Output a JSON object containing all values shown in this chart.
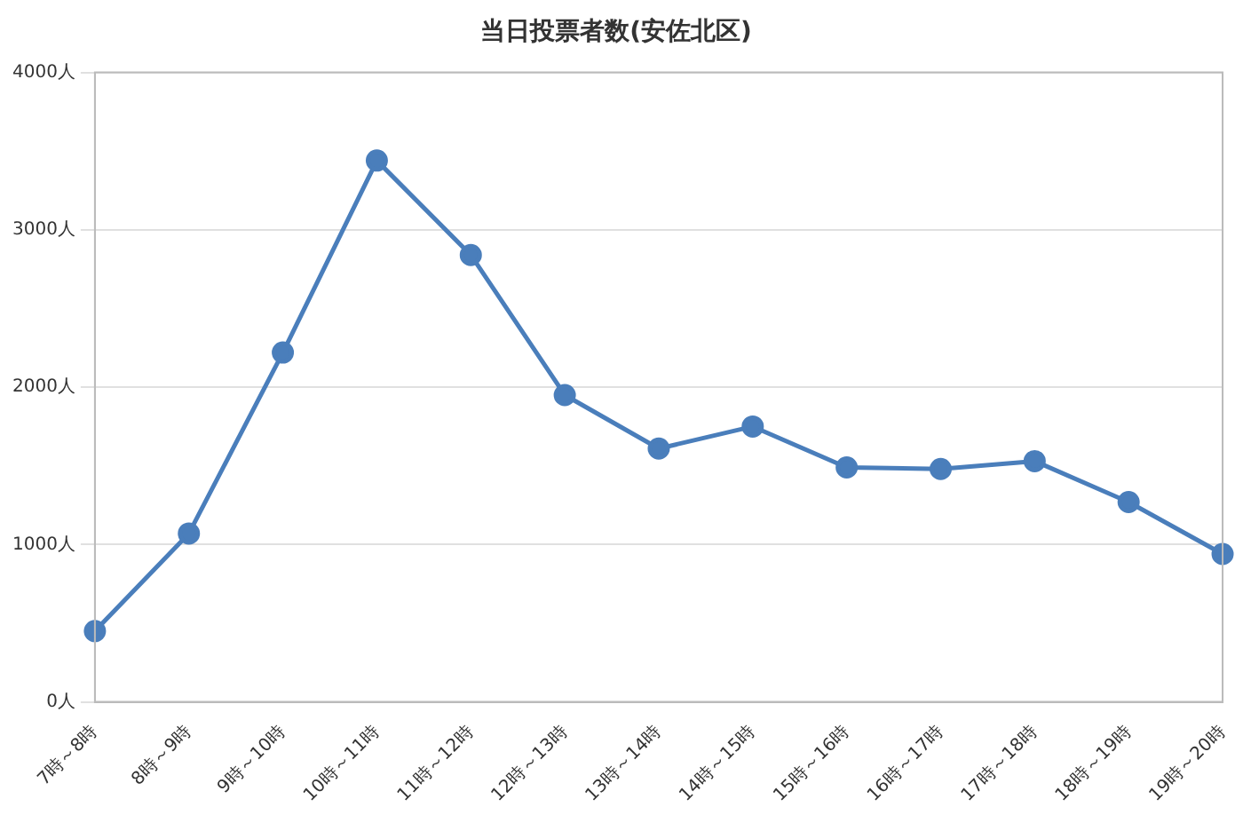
{
  "chart_data": {
    "type": "line",
    "title": "当日投票者数(安佐北区)",
    "categories": [
      "7時～8時",
      "8時～9時",
      "9時～10時",
      "10時～11時",
      "11時～12時",
      "12時～13時",
      "13時～14時",
      "14時～15時",
      "15時～16時",
      "16時～17時",
      "17時～18時",
      "18時～19時",
      "19時～20時"
    ],
    "series": [
      {
        "color": "#4a7ebb",
        "values": [
          450,
          1070,
          2220,
          3440,
          2840,
          1950,
          1610,
          1750,
          1490,
          1480,
          1530,
          1270,
          940
        ]
      }
    ],
    "ylim": [
      0,
      4000
    ],
    "yticks": [
      {
        "value": 0,
        "label": "0人"
      },
      {
        "value": 1000,
        "label": "1000人"
      },
      {
        "value": 2000,
        "label": "2000人"
      },
      {
        "value": 3000,
        "label": "3000人"
      },
      {
        "value": 4000,
        "label": "4000人"
      }
    ],
    "grid": "y",
    "marker": "circle",
    "line_style": "solid",
    "legend": false
  }
}
